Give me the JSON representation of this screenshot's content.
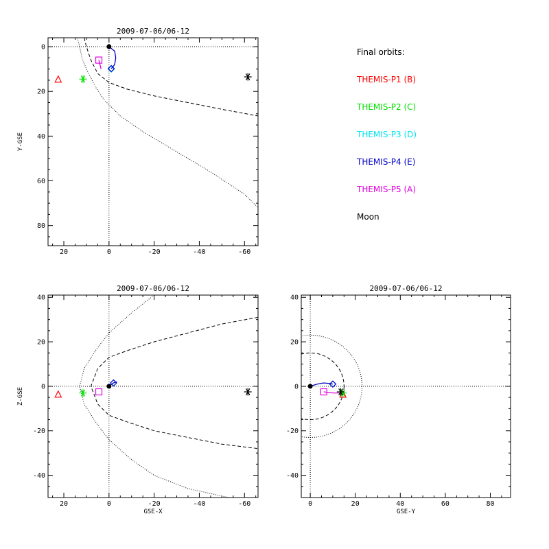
{
  "legend": {
    "heading": "Final orbits:",
    "items": [
      {
        "label": "THEMIS-P1 (B)",
        "color": "#ff0000"
      },
      {
        "label": "THEMIS-P2 (C)",
        "color": "#00e000"
      },
      {
        "label": "THEMIS-P3 (D)",
        "color": "#00e5ee"
      },
      {
        "label": "THEMIS-P4 (E)",
        "color": "#0000c8"
      },
      {
        "label": "THEMIS-P5 (A)",
        "color": "#e000e0"
      },
      {
        "label": "Moon",
        "color": "#000000"
      }
    ]
  },
  "chart_data": [
    {
      "type": "scatter",
      "title": "2009-07-06/06-12",
      "xlabel": "",
      "ylabel": "Y-GSE",
      "xlim": [
        27,
        -66
      ],
      "ylim": [
        -4,
        89
      ],
      "xticks": [
        20,
        0,
        -20,
        -40,
        -60
      ],
      "yticks": [
        0,
        20,
        40,
        60,
        80
      ],
      "y_inverted": true,
      "grid": false,
      "reference_lines": {
        "x": 0,
        "y": 0
      },
      "boundaries": [
        {
          "name": "bow shock",
          "style": "dotted",
          "points": [
            [
              14,
              -4
            ],
            [
              13,
              0
            ],
            [
              12,
              5
            ],
            [
              10,
              10
            ],
            [
              6,
              18
            ],
            [
              2,
              24
            ],
            [
              -5,
              31
            ],
            [
              -15,
              38
            ],
            [
              -30,
              47
            ],
            [
              -45,
              56
            ],
            [
              -60,
              66
            ],
            [
              -66,
              72
            ]
          ]
        },
        {
          "name": "magnetopause",
          "style": "dashed",
          "points": [
            [
              11,
              -4
            ],
            [
              10,
              0
            ],
            [
              8,
              6
            ],
            [
              5,
              12
            ],
            [
              0,
              16
            ],
            [
              -8,
              19
            ],
            [
              -20,
              22
            ],
            [
              -35,
              25
            ],
            [
              -50,
              28
            ],
            [
              -66,
              31
            ]
          ]
        }
      ],
      "series": [
        {
          "marker": "triangle",
          "color": "#ff0000",
          "points": [
            [
              22.5,
              14.5
            ]
          ]
        },
        {
          "marker": "asterisk",
          "color": "#00e000",
          "points": [
            [
              11.5,
              14.5
            ]
          ]
        },
        {
          "marker": "diamond",
          "color": "#00e5ee",
          "points": [
            [
              -1,
              10
            ]
          ]
        },
        {
          "marker": "diamond",
          "color": "#0000c8",
          "points": [
            [
              -1,
              9.8
            ]
          ],
          "trace": [
            [
              0,
              0
            ],
            [
              -2.5,
              2
            ],
            [
              -3,
              5
            ],
            [
              -2.5,
              8
            ],
            [
              -1,
              9.8
            ]
          ]
        },
        {
          "marker": "square",
          "color": "#e000e0",
          "points": [
            [
              4.5,
              6
            ]
          ],
          "trace": [
            [
              3.5,
              10
            ],
            [
              4,
              8
            ],
            [
              4.5,
              6
            ]
          ]
        },
        {
          "marker": "asterisk",
          "color": "#000000",
          "points": [
            [
              -61.5,
              13.5
            ]
          ]
        },
        {
          "marker": "dot",
          "color": "#000000",
          "points": [
            [
              0,
              0
            ]
          ]
        }
      ]
    },
    {
      "type": "scatter",
      "title": "2009-07-06/06-12",
      "xlabel": "GSE-X",
      "ylabel": "Z-GSE",
      "xlim": [
        27,
        -66
      ],
      "ylim": [
        -50,
        41
      ],
      "xticks": [
        20,
        0,
        -20,
        -40,
        -60
      ],
      "yticks": [
        -40,
        -20,
        0,
        20,
        40
      ],
      "y_inverted": false,
      "grid": false,
      "reference_lines": {
        "x": 0,
        "y": 0
      },
      "boundaries": [
        {
          "name": "bow shock",
          "style": "dotted",
          "points": [
            [
              -20,
              41
            ],
            [
              -10,
              33
            ],
            [
              0,
              24
            ],
            [
              6,
              16
            ],
            [
              11,
              8
            ],
            [
              13,
              0
            ],
            [
              11,
              -8
            ],
            [
              6,
              -16
            ],
            [
              0,
              -24
            ],
            [
              -10,
              -33
            ],
            [
              -20,
              -40
            ],
            [
              -35,
              -46
            ],
            [
              -53,
              -50
            ]
          ]
        },
        {
          "name": "magnetopause",
          "style": "dashed",
          "points": [
            [
              -66,
              31
            ],
            [
              -50,
              28
            ],
            [
              -35,
              24
            ],
            [
              -20,
              20
            ],
            [
              -8,
              16
            ],
            [
              0,
              13
            ],
            [
              5,
              8
            ],
            [
              8,
              0
            ],
            [
              5,
              -8
            ],
            [
              0,
              -13
            ],
            [
              -8,
              -16
            ],
            [
              -20,
              -20
            ],
            [
              -35,
              -23
            ],
            [
              -50,
              -26
            ],
            [
              -66,
              -28
            ]
          ]
        }
      ],
      "series": [
        {
          "marker": "triangle",
          "color": "#ff0000",
          "points": [
            [
              22.5,
              -3.5
            ]
          ]
        },
        {
          "marker": "asterisk",
          "color": "#00e000",
          "points": [
            [
              11.5,
              -3
            ]
          ]
        },
        {
          "marker": "diamond",
          "color": "#00e5ee",
          "points": [
            [
              -2,
              1.5
            ]
          ]
        },
        {
          "marker": "diamond",
          "color": "#0000c8",
          "points": [
            [
              -2,
              1.5
            ]
          ],
          "trace": [
            [
              0,
              0
            ],
            [
              -1,
              0.8
            ],
            [
              -2,
              1.5
            ],
            [
              -3.5,
              2
            ]
          ]
        },
        {
          "marker": "square",
          "color": "#e000e0",
          "points": [
            [
              4.5,
              -2.5
            ]
          ]
        },
        {
          "marker": "asterisk",
          "color": "#000000",
          "points": [
            [
              -61.5,
              -2.5
            ]
          ]
        },
        {
          "marker": "dot",
          "color": "#000000",
          "points": [
            [
              0,
              0
            ]
          ]
        }
      ]
    },
    {
      "type": "scatter",
      "title": "2009-07-06/06-12",
      "xlabel": "GSE-Y",
      "ylabel": "",
      "xlim": [
        -4,
        89
      ],
      "ylim": [
        -50,
        41
      ],
      "xticks": [
        0,
        20,
        40,
        60,
        80
      ],
      "yticks": [
        -40,
        -20,
        0,
        20,
        40
      ],
      "y_inverted": false,
      "grid": false,
      "reference_lines": {
        "x": 0,
        "y": 0
      },
      "boundaries": [
        {
          "name": "bow shock",
          "style": "dotted",
          "circle": {
            "radius": 23
          }
        },
        {
          "name": "magnetopause",
          "style": "dashed",
          "circle": {
            "radius": 15
          }
        }
      ],
      "series": [
        {
          "marker": "diamond",
          "color": "#00e5ee",
          "points": [
            [
              10,
              1
            ]
          ]
        },
        {
          "marker": "diamond",
          "color": "#0000c8",
          "points": [
            [
              10,
              1
            ]
          ],
          "trace": [
            [
              0,
              0
            ],
            [
              3,
              1
            ],
            [
              6,
              1.5
            ],
            [
              9,
              1.2
            ],
            [
              10,
              1
            ]
          ]
        },
        {
          "marker": "square",
          "color": "#e000e0",
          "points": [
            [
              6,
              -2.5
            ]
          ],
          "trace": [
            [
              6,
              -2.5
            ],
            [
              10,
              -3
            ],
            [
              13.5,
              -3
            ]
          ]
        },
        {
          "marker": "triangle",
          "color": "#ff0000",
          "points": [
            [
              14.5,
              -3.5
            ]
          ]
        },
        {
          "marker": "asterisk",
          "color": "#00e000",
          "points": [
            [
              14.5,
              -3
            ]
          ]
        },
        {
          "marker": "asterisk",
          "color": "#000000",
          "points": [
            [
              13.5,
              -2.5
            ]
          ]
        },
        {
          "marker": "dot",
          "color": "#000000",
          "points": [
            [
              0,
              0
            ]
          ]
        }
      ]
    }
  ]
}
